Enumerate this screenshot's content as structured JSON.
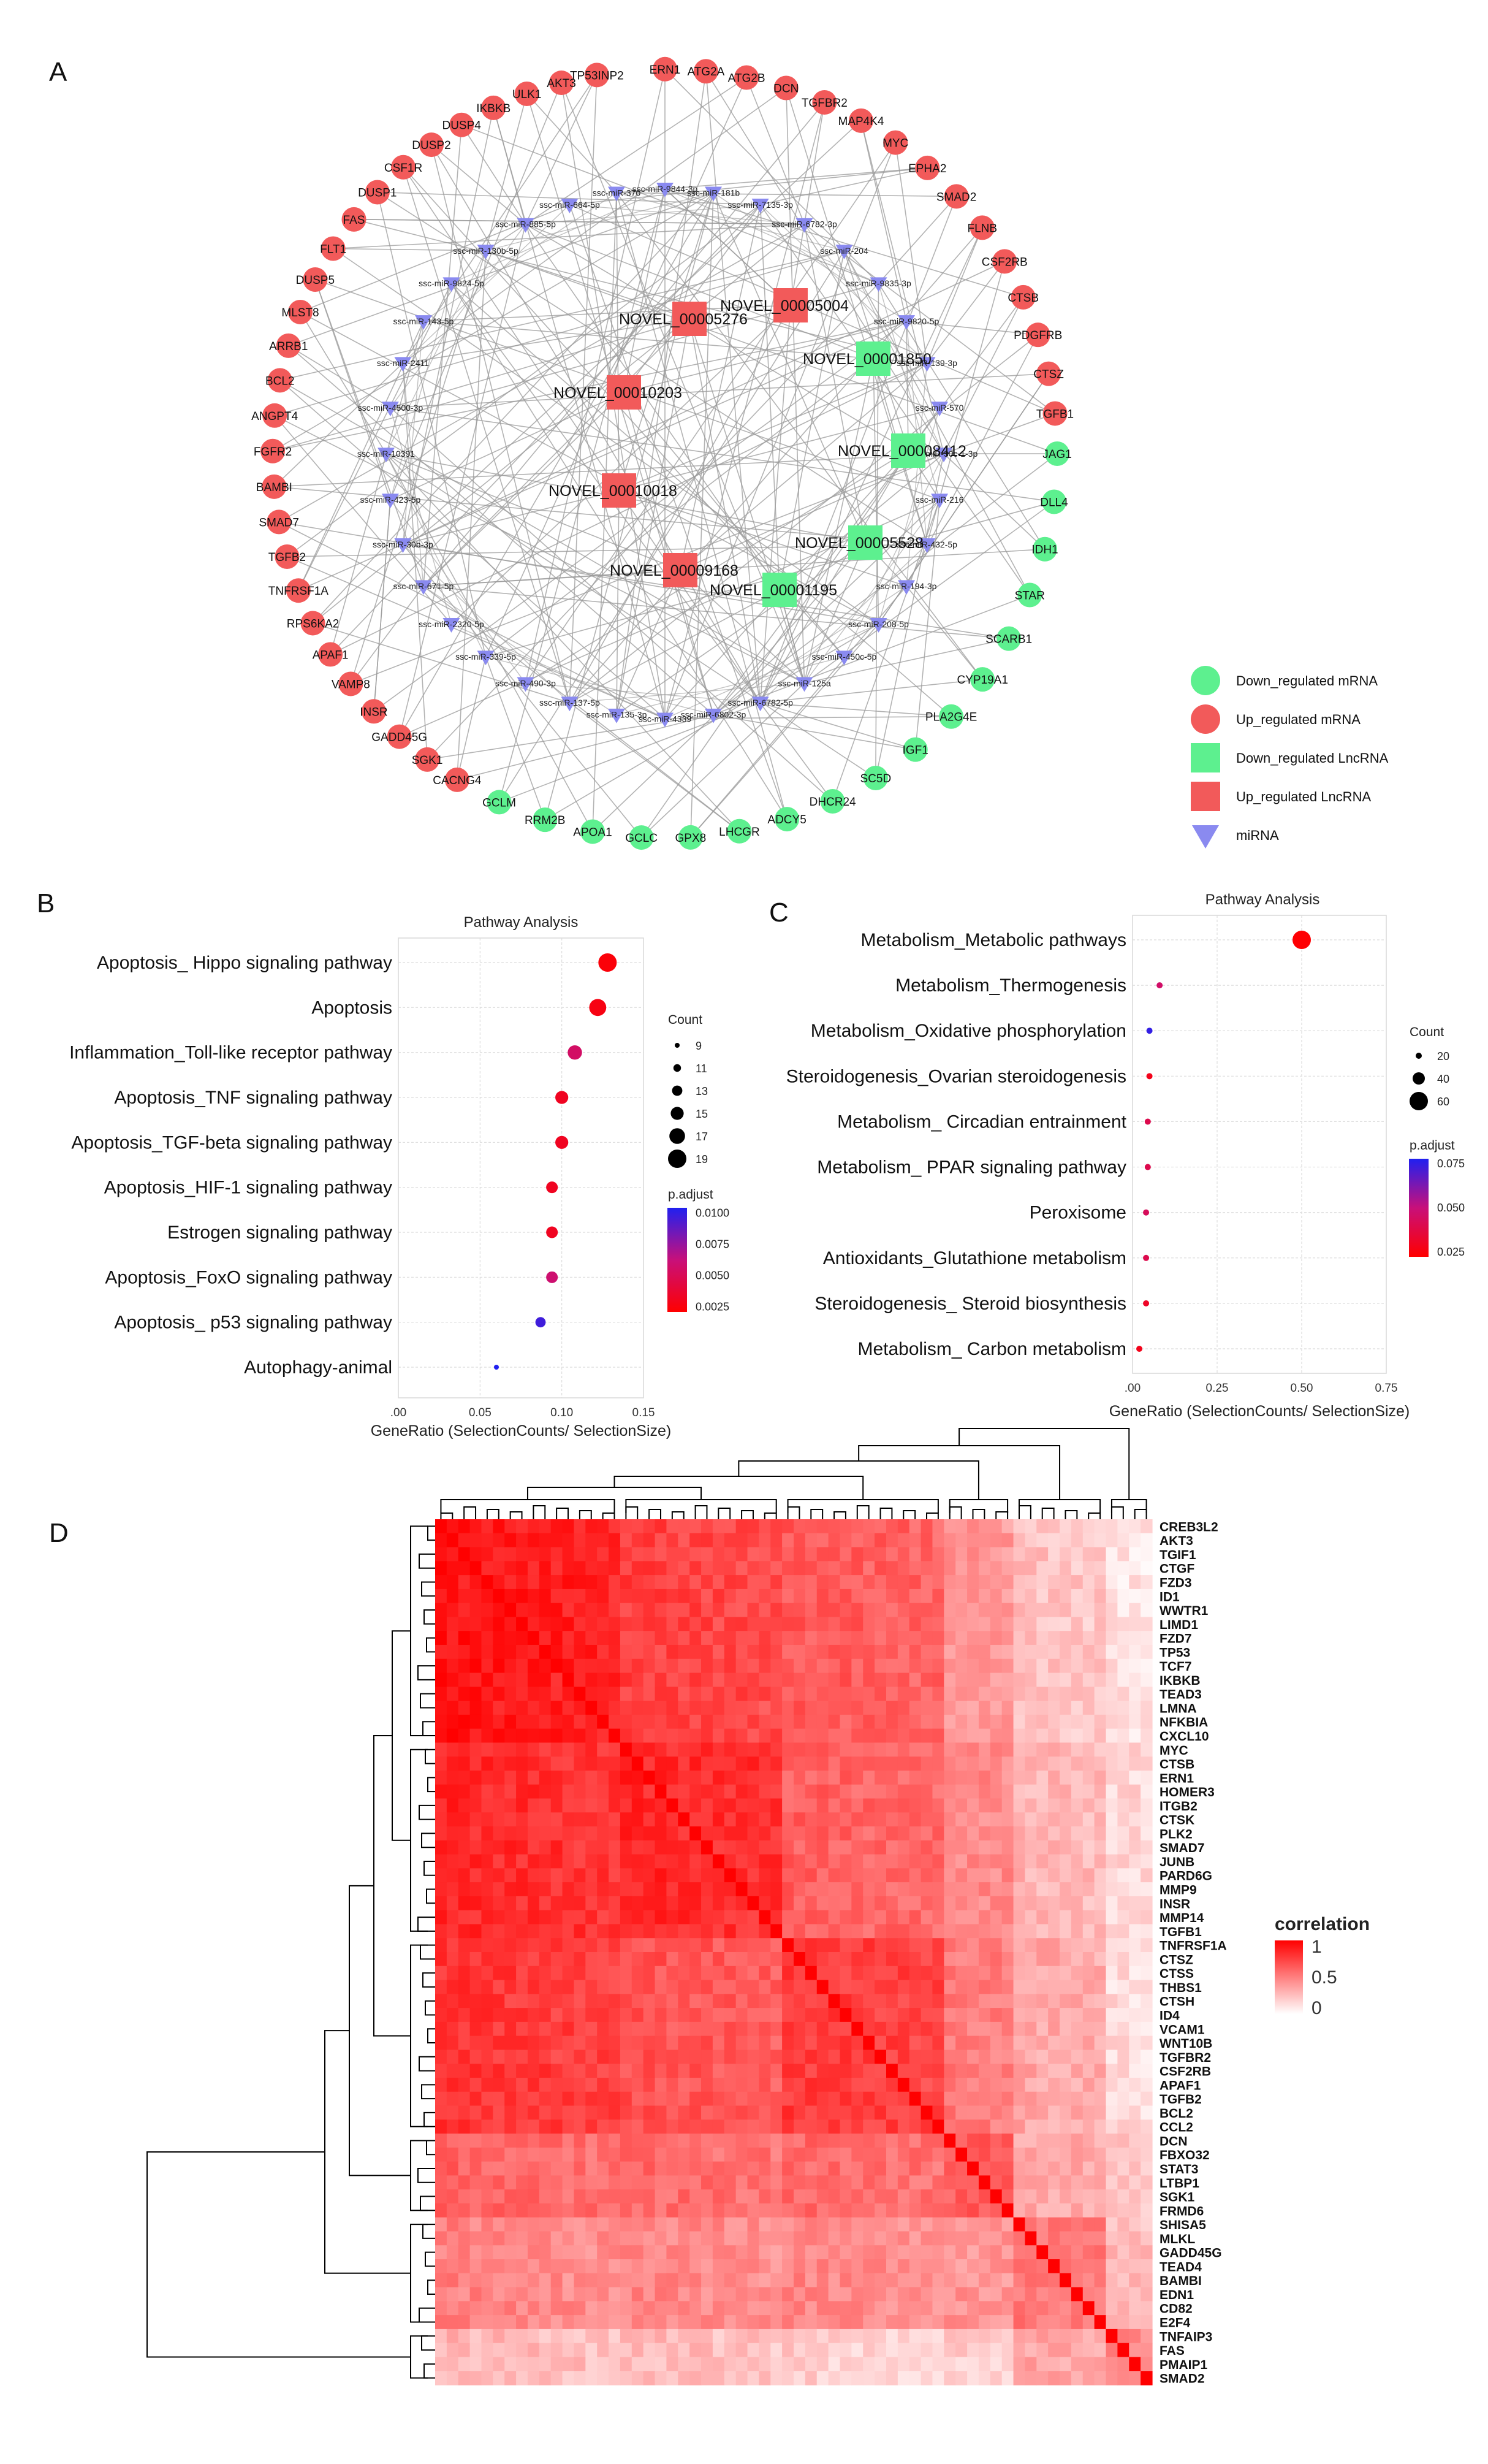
{
  "panels": {
    "A": {
      "label": "A",
      "network": {
        "red_mrna": [
          "ERN1",
          "ATG2A",
          "ATG2B",
          "DCN",
          "TGFBR2",
          "MAP4K4",
          "MYC",
          "EPHA2",
          "SMAD2",
          "FLNB",
          "CSF2RB",
          "CTSB",
          "PDGFRB",
          "CTSZ",
          "TGFB1",
          "TP53INP2",
          "AKT3",
          "ULK1",
          "IKBKB",
          "DUSP4",
          "DUSP2",
          "CSF1R",
          "DUSP1",
          "FAS",
          "FLT1",
          "DUSP5",
          "MLST8",
          "ARRB1",
          "BCL2",
          "ANGPT4",
          "FGFR2",
          "BAMBI",
          "SMAD7",
          "TGFB2",
          "TNFRSF1A",
          "RPS6KA2",
          "APAF1",
          "VAMP8",
          "INSR",
          "GADD45G",
          "SGK1",
          "CACNG4"
        ],
        "green_mrna": [
          "JAG1",
          "DLL4",
          "IDH1",
          "STAR",
          "SCARB1",
          "CYP19A1",
          "PLA2G4E",
          "IGF1",
          "SC5D",
          "DHCR24",
          "ADCY5",
          "LHCGR",
          "GPX8",
          "GCLC",
          "APOA1",
          "RRM2B",
          "GCLM"
        ],
        "red_lnc": [
          "NOVEL_00005004",
          "NOVEL_00005276",
          "NOVEL_00010203",
          "NOVEL_00010018",
          "NOVEL_00009168"
        ],
        "green_lnc": [
          "NOVEL_00001850",
          "NOVEL_00008412",
          "NOVEL_00005528",
          "NOVEL_00001195"
        ],
        "mirna": [
          "ssc-miR-181b",
          "ssc-miR-7135-3p",
          "ssc-miR-6782-3p",
          "ssc-miR-204",
          "ssc-miR-9835-3p",
          "ssc-miR-9820-5p",
          "ssc-miR-139-3p",
          "ssc-miR-570",
          "ssc-miR-30c-1-3p",
          "ssc-miR-216",
          "ssc-miR-432-5p",
          "ssc-miR-194-3p",
          "ssc-miR-208-5p",
          "ssc-miR-450c-5p",
          "ssc-miR-125a",
          "ssc-miR-6782-5p",
          "ssc-miR-6802-3p",
          "ssc-miR-4339",
          "ssc-miR-135-3p",
          "ssc-miR-137-5p",
          "ssc-miR-490-3p",
          "ssc-miR-339-5p",
          "ssc-miR-2320-5p",
          "ssc-miR-671-5p",
          "ssc-miR-30b-3p",
          "ssc-miR-423-5p",
          "ssc-miR-10391",
          "ssc-miR-4500-3p",
          "ssc-miR-2411",
          "ssc-miR-143-5p",
          "ssc-miR-9824-5p",
          "ssc-miR-130b-5p",
          "ssc-miR-885-5p",
          "ssc-miR-664-5p",
          "ssc-miR-370",
          "ssc-miR-9844-3p"
        ]
      },
      "legend": [
        {
          "label": "Down_regulated mRNA",
          "shape": "circle",
          "color": "#5DF08F"
        },
        {
          "label": "Up_regulated mRNA",
          "shape": "circle",
          "color": "#F25A5A"
        },
        {
          "label": "Down_regulated LncRNA",
          "shape": "square",
          "color": "#5DF08F"
        },
        {
          "label": "Up_regulated LncRNA",
          "shape": "square",
          "color": "#F25A5A"
        },
        {
          "label": "miRNA",
          "shape": "triangle",
          "color": "#8A8AF0"
        }
      ]
    },
    "B": {
      "label": "B",
      "chart_data": {
        "type": "scatter",
        "title": "Pathway Analysis",
        "xlabel": "GeneRatio (SelectionCounts/ SelectionSize)",
        "xlim": [
          0.0,
          0.15
        ],
        "xticks": [
          ".00",
          "0.05",
          "0.10",
          "0.15"
        ],
        "categories": [
          "Apoptosis_ Hippo signaling pathway",
          "Apoptosis",
          "Inflammation_Toll-like receptor pathway",
          "Apoptosis_TNF signaling pathway",
          "Apoptosis_TGF-beta signaling pathway",
          "Apoptosis_HIF-1 signaling pathway",
          "Estrogen signaling pathway",
          "Apoptosis_FoxO signaling pathway",
          "Apoptosis_ p53 signaling pathway",
          "Autophagy-animal"
        ],
        "gene_ratio": [
          0.128,
          0.122,
          0.108,
          0.1,
          0.1,
          0.094,
          0.094,
          0.094,
          0.087,
          0.06
        ],
        "count": [
          19,
          18,
          16,
          15,
          15,
          14,
          14,
          14,
          13,
          9
        ],
        "p_adjust": [
          0.0004,
          0.0008,
          0.0045,
          0.0015,
          0.0015,
          0.0015,
          0.0015,
          0.005,
          0.01,
          0.011
        ],
        "size_legend_title": "Count",
        "size_legend": [
          9,
          11,
          13,
          15,
          17,
          19
        ],
        "color_legend_title": "p.adjust",
        "color_legend_ticks": [
          "0.0100",
          "0.0075",
          "0.0050",
          "0.0025"
        ],
        "color_range": [
          0.0,
          0.011
        ]
      }
    },
    "C": {
      "label": "C",
      "chart_data": {
        "type": "scatter",
        "title": "Pathway Analysis",
        "xlabel": "GeneRatio (SelectionCounts/ SelectionSize)",
        "xlim": [
          0.0,
          0.75
        ],
        "xticks": [
          ".00",
          "0.25",
          "0.50",
          "0.75"
        ],
        "categories": [
          "Metabolism_Metabolic pathways",
          "Metabolism_Thermogenesis",
          "Metabolism_Oxidative phosphorylation",
          "Steroidogenesis_Ovarian steroidogenesis",
          "Metabolism_ Circadian entrainment",
          "Metabolism_ PPAR signaling pathway",
          "Peroxisome",
          "Antioxidants_Glutathione metabolism",
          "Steroidogenesis_ Steroid biosynthesis",
          "Metabolism_ Carbon metabolism"
        ],
        "gene_ratio": [
          0.5,
          0.08,
          0.05,
          0.05,
          0.045,
          0.045,
          0.04,
          0.04,
          0.04,
          0.02
        ],
        "count": [
          60,
          14,
          10,
          9,
          8,
          8,
          7,
          7,
          7,
          4
        ],
        "p_adjust": [
          0.001,
          0.04,
          0.09,
          0.01,
          0.03,
          0.03,
          0.035,
          0.03,
          0.015,
          0.01
        ],
        "size_legend_title": "Count",
        "size_legend": [
          20,
          40,
          60
        ],
        "color_legend_title": "p.adjust",
        "color_legend_ticks": [
          "0.075",
          "0.050",
          "0.025"
        ],
        "color_range": [
          0.0,
          0.095
        ]
      }
    },
    "D": {
      "label": "D",
      "chart_data": {
        "type": "heatmap",
        "title": "",
        "legend_title": "correlation",
        "legend_ticks": [
          "1",
          "0.5",
          "0"
        ],
        "value_range": [
          0,
          1
        ],
        "genes": [
          "CREB3L2",
          "AKT3",
          "TGIF1",
          "CTGF",
          "FZD3",
          "ID1",
          "WWTR1",
          "LIMD1",
          "FZD7",
          "TP53",
          "TCF7",
          "IKBKB",
          "TEAD3",
          "LMNA",
          "NFKBIA",
          "CXCL10",
          "MYC",
          "CTSB",
          "ERN1",
          "HOMER3",
          "ITGB2",
          "CTSK",
          "PLK2",
          "SMAD7",
          "JUNB",
          "PARD6G",
          "MMP9",
          "INSR",
          "MMP14",
          "TGFB1",
          "TNFRSF1A",
          "CTSZ",
          "CTSS",
          "THBS1",
          "CTSH",
          "ID4",
          "VCAM1",
          "WNT10B",
          "TGFBR2",
          "CSF2RB",
          "APAF1",
          "TGFB2",
          "BCL2",
          "CCL2",
          "DCN",
          "FBXO32",
          "STAT3",
          "LTBP1",
          "SGK1",
          "FRMD6",
          "SHISA5",
          "MLKL",
          "GADD45G",
          "TEAD4",
          "BAMBI",
          "EDN1",
          "CD82",
          "E2F4",
          "TNFAIP3",
          "FAS",
          "PMAIP1",
          "SMAD2"
        ],
        "group_mean_correlation": [
          [
            0.92,
            0.82,
            0.78,
            0.6,
            0.45,
            0.35
          ],
          [
            0.85,
            0.92,
            0.75,
            0.65,
            0.5,
            0.4
          ],
          [
            0.8,
            0.75,
            0.9,
            0.7,
            0.55,
            0.38
          ],
          [
            0.62,
            0.66,
            0.72,
            0.82,
            0.55,
            0.45
          ],
          [
            0.5,
            0.55,
            0.6,
            0.6,
            0.75,
            0.5
          ],
          [
            0.3,
            0.35,
            0.32,
            0.38,
            0.55,
            0.7
          ]
        ],
        "group_sizes": [
          16,
          14,
          14,
          6,
          8,
          4
        ]
      }
    }
  }
}
